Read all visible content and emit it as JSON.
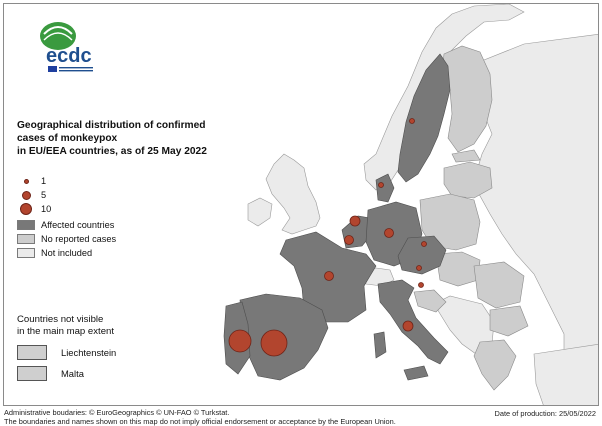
{
  "logo": {
    "text": "ecdc"
  },
  "title": {
    "line1": "Geographical distribution of confirmed",
    "line2": "cases of monkeypox",
    "line3": "in EU/EEA countries, as of 25 May 2022"
  },
  "legend": {
    "sizes": [
      {
        "label": "1",
        "cases": 1
      },
      {
        "label": "5",
        "cases": 5
      },
      {
        "label": "10",
        "cases": 10
      }
    ],
    "categories": [
      {
        "label": "Affected countries",
        "color": "#787878"
      },
      {
        "label": "No reported cases",
        "color": "#cdcdcd"
      },
      {
        "label": "Not included",
        "color": "#ebebeb"
      }
    ]
  },
  "not_visible": {
    "title_line1": "Countries not visible",
    "title_line2": "in the main map extent",
    "items": [
      "Liechtenstein",
      "Malta"
    ]
  },
  "footer": {
    "line1": "Administrative boudaries: © EuroGeographics © UN-FAO © Turkstat.",
    "line2": "The boundaries and names shown on this map do not imply official endorsement or acceptance by the European Union.",
    "date": "Date of production: 25/05/2022"
  },
  "colors": {
    "affected": "#787878",
    "no_cases": "#cdcdcd",
    "not_included": "#ebebeb",
    "bubble": "#b2452e",
    "sea": "#ffffff"
  }
}
